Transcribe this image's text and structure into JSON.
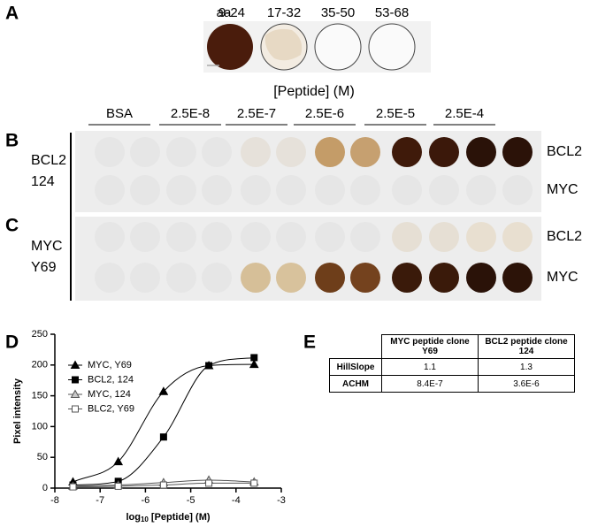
{
  "panel_a": {
    "label": "A",
    "aa_label": "aa",
    "peptides": [
      "9-24",
      "17-32",
      "35-50",
      "53-68"
    ]
  },
  "panels_bc": {
    "title": "[Peptide] (M)",
    "columns": [
      "BSA",
      "2.5E-8",
      "2.5E-7",
      "2.5E-6",
      "2.5E-5",
      "2.5E-4"
    ],
    "panels": [
      {
        "label": "B",
        "clone": [
          "BCL2",
          "124"
        ],
        "rows": [
          "BCL2",
          "MYC"
        ]
      },
      {
        "label": "C",
        "clone": [
          "MYC",
          "Y69"
        ],
        "rows": [
          "BCL2",
          "MYC"
        ]
      }
    ]
  },
  "chart_data": {
    "type": "line",
    "panel_label": "D",
    "x_label": [
      "log",
      "10",
      " [Peptide] (M)"
    ],
    "y_label": "Pixel intensity",
    "x": [
      -7.6,
      -6.6,
      -5.6,
      -4.6,
      -3.6
    ],
    "xlim": [
      -8,
      -3
    ],
    "xticks": [
      -8,
      -7,
      -6,
      -5,
      -4,
      -3
    ],
    "ylim": [
      0,
      250
    ],
    "yticks": [
      0,
      50,
      100,
      150,
      200,
      250
    ],
    "legend": "upper left",
    "series": [
      {
        "name": "MYC, Y69",
        "marker": "triangle",
        "color": "#000000",
        "fill": "#000000",
        "values": [
          10,
          43,
          157,
          199,
          201
        ]
      },
      {
        "name": "BCL2, 124",
        "marker": "square",
        "color": "#000000",
        "fill": "#000000",
        "values": [
          5,
          11,
          83,
          199,
          212
        ]
      },
      {
        "name": "MYC, 124",
        "marker": "triangle",
        "color": "#555555",
        "fill": "#c8c8c8",
        "values": [
          3,
          5,
          9,
          13,
          10
        ]
      },
      {
        "name": "BLC2, Y69",
        "marker": "square",
        "color": "#555555",
        "fill": "#ffffff",
        "values": [
          2,
          3,
          5,
          8,
          8
        ]
      }
    ]
  },
  "table": {
    "label": "E",
    "header": [
      "MYC peptide clone Y69",
      "BCL2 peptide clone 124"
    ],
    "rows": [
      [
        "HillSlope",
        "1.1",
        "1.3"
      ],
      [
        "ACHM",
        "8.4E-7",
        "3.6E-6"
      ]
    ]
  }
}
